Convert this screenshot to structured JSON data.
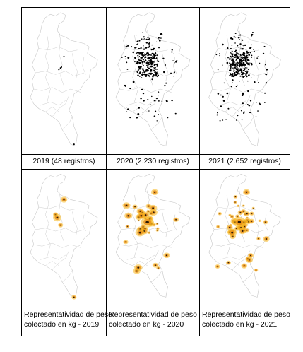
{
  "years": [
    {
      "caption": "2019 (48 registros)"
    },
    {
      "caption": "2020 (2.230 registros)"
    },
    {
      "caption": "2021 (2.652 registros)"
    }
  ],
  "weights": [
    {
      "line1": "Representatividad de peso",
      "line2": "colectado en kg - 2019"
    },
    {
      "line1": "Representatividad de peso",
      "line2": "colectado en kg - 2020"
    },
    {
      "line1": "Representatividad de peso",
      "line2": "colectado en kg - 2021"
    }
  ],
  "colors": {
    "border": "#c8c8c8",
    "point": "#000000",
    "heat_outer": "#f5b820",
    "heat_mid": "#e8901a",
    "heat_core": "#2a1a08"
  }
}
